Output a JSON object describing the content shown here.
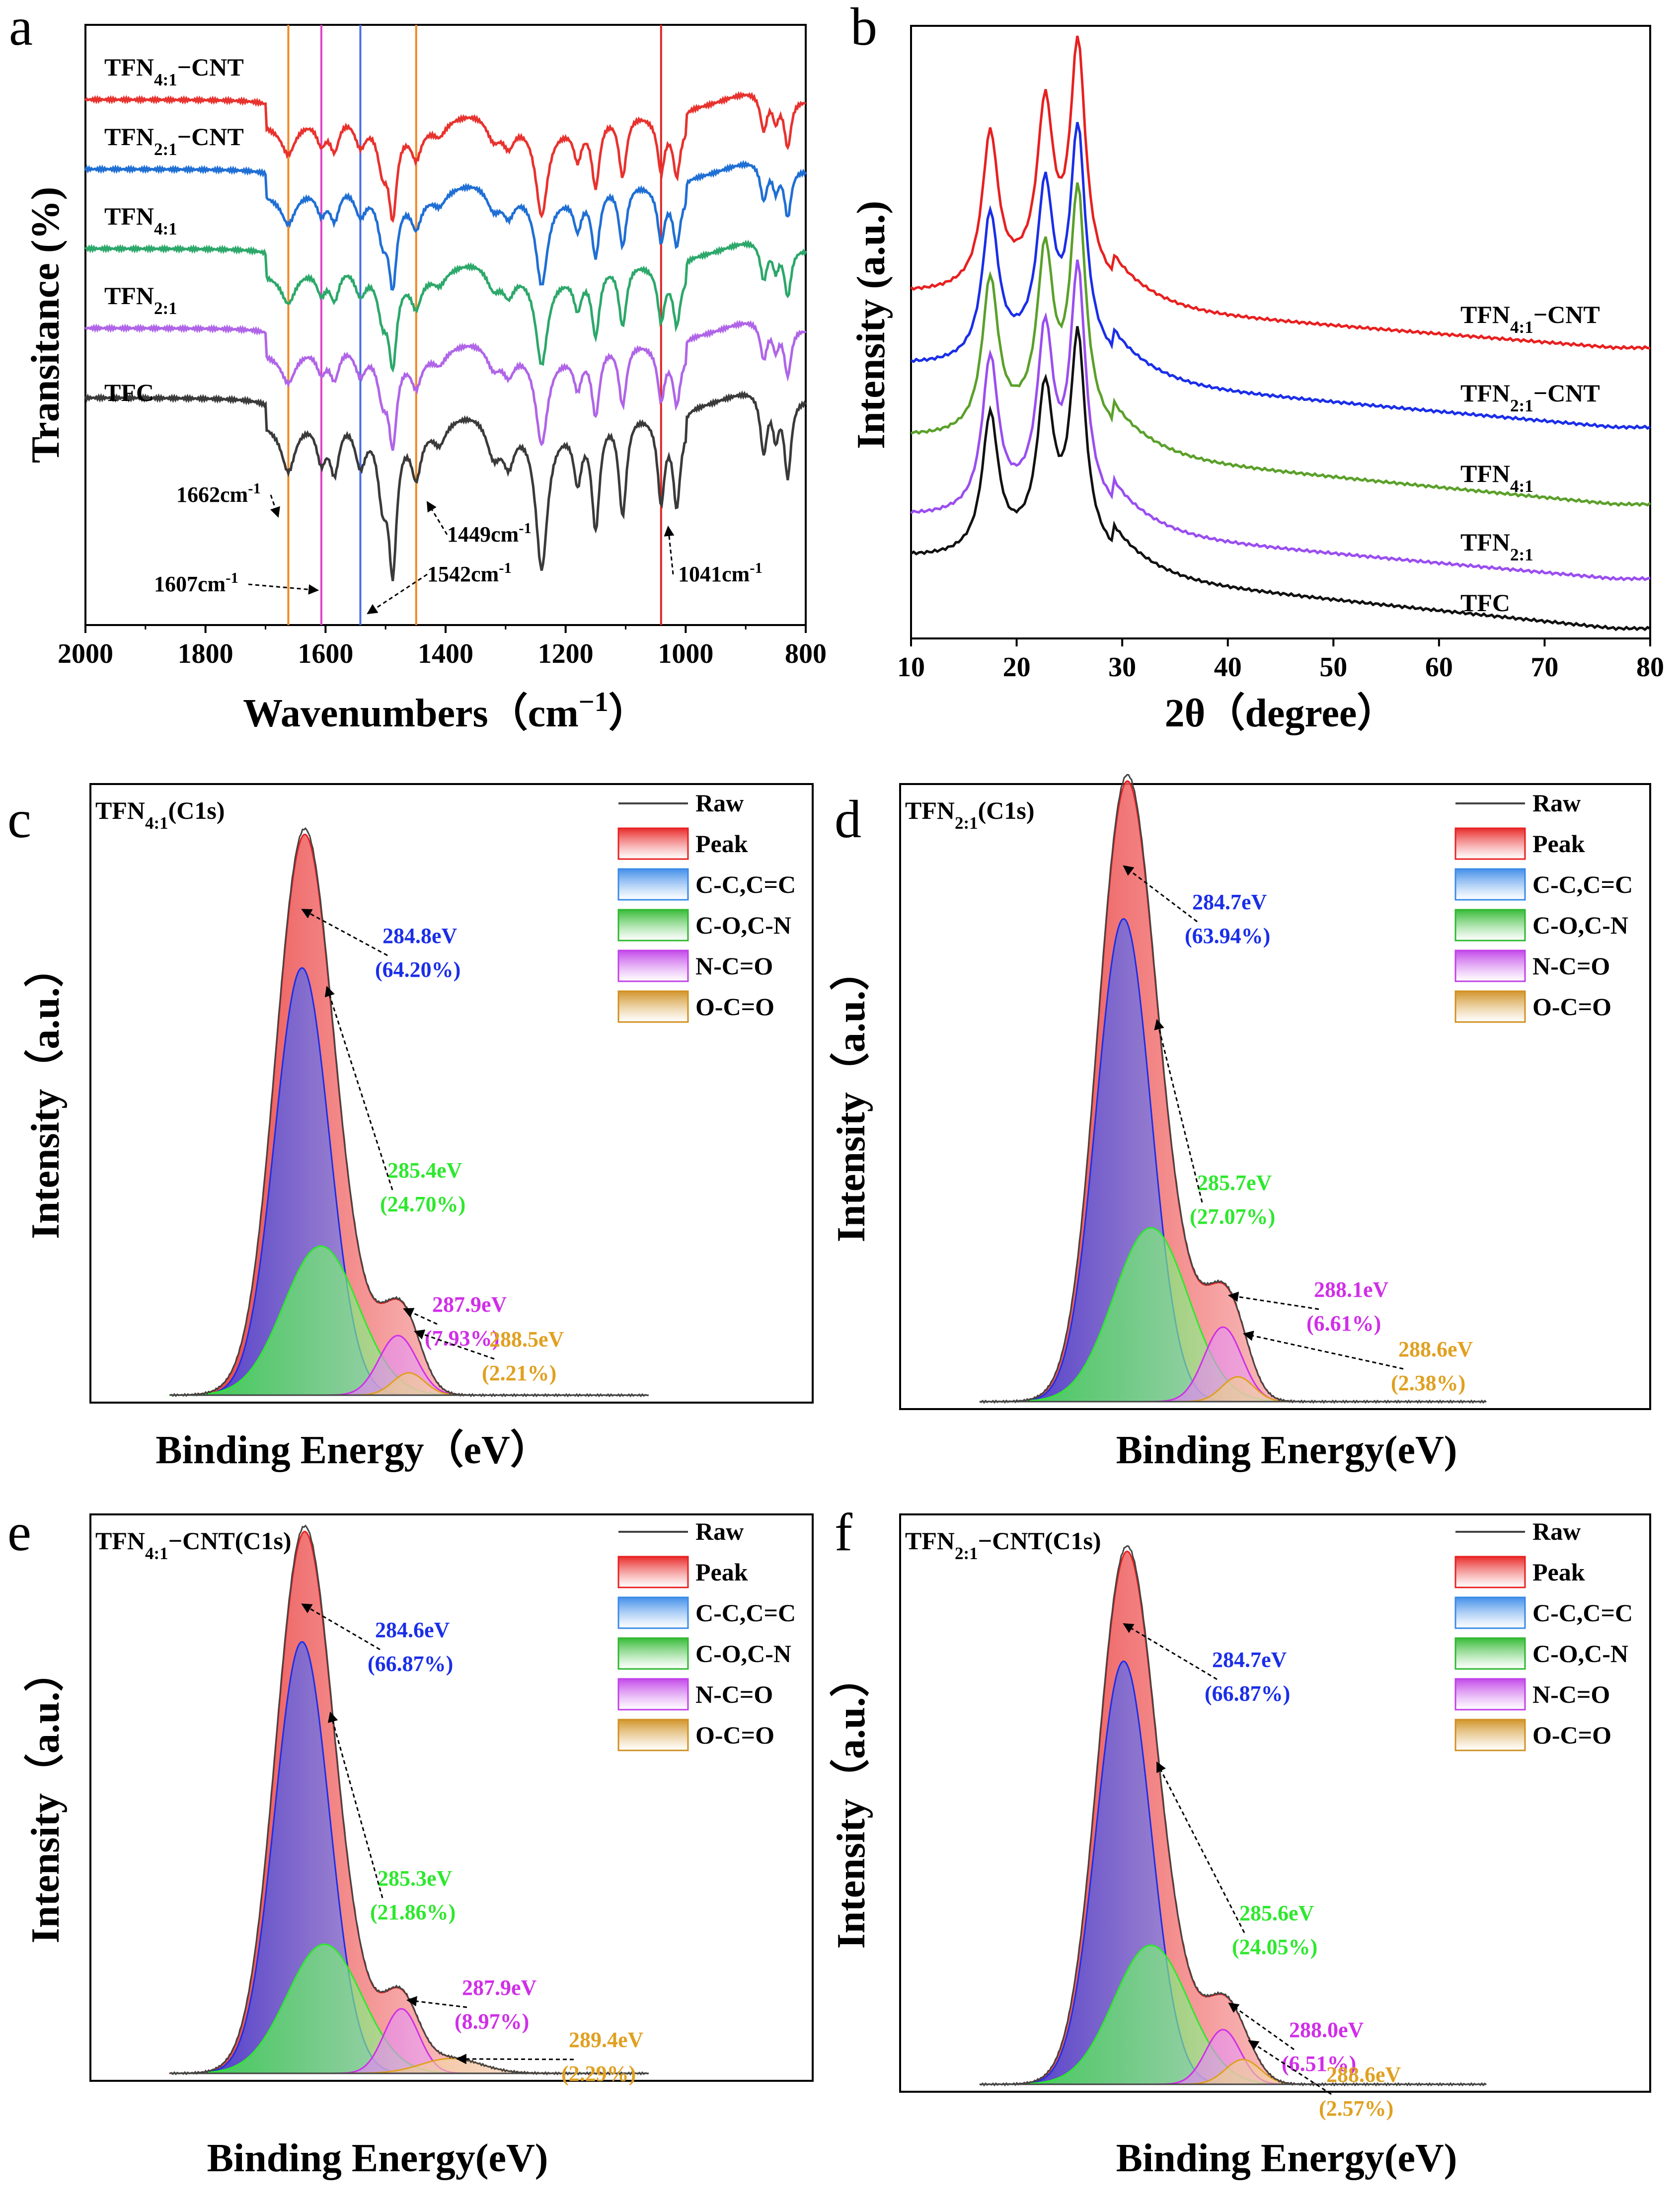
{
  "chart_data": [
    {
      "id": "a",
      "panel_label": "a",
      "type": "line",
      "title": "",
      "xlabel": "Wavenumbers（cm",
      "xlabel_sup": "−1",
      "xlabel_close": "）",
      "ylabel": "Transitance (%)",
      "x_reversed": true,
      "xlim": [
        2000,
        800
      ],
      "x_ticks": [
        "2000",
        "1800",
        "1600",
        "1400",
        "1200",
        "1000",
        "800"
      ],
      "series": [
        {
          "name": "TFN4:1−CNT",
          "base": "TFN",
          "sub": "4:1",
          "suffix": "−CNT",
          "color": "#e8322e",
          "offset": 0
        },
        {
          "name": "TFN2:1−CNT",
          "base": "TFN",
          "sub": "2:1",
          "suffix": "−CNT",
          "color": "#1f6fd4",
          "offset": 1
        },
        {
          "name": "TFN4:1",
          "base": "TFN",
          "sub": "4:1",
          "suffix": "",
          "color": "#2ca86a",
          "offset": 2
        },
        {
          "name": "TFN2:1",
          "base": "TFN",
          "sub": "2:1",
          "suffix": "",
          "color": "#b065e8",
          "offset": 3
        },
        {
          "name": "TFC",
          "base": "TFC",
          "sub": "",
          "suffix": "",
          "color": "#3a3a3a",
          "offset": 4
        }
      ],
      "marker_lines": [
        {
          "wavenumber": 1662,
          "color": "#f08a24",
          "label": "1662cm",
          "sup": "-1"
        },
        {
          "wavenumber": 1607,
          "color": "#e040c8",
          "label": "1607cm",
          "sup": "-1"
        },
        {
          "wavenumber": 1542,
          "color": "#4a6ee8",
          "label": "1542cm",
          "sup": "-1"
        },
        {
          "wavenumber": 1449,
          "color": "#f08a24",
          "label": "1449cm",
          "sup": "-1"
        },
        {
          "wavenumber": 1041,
          "color": "#e02424",
          "label": "1041cm",
          "sup": "-1"
        }
      ],
      "bands": [
        {
          "wavenumber": 1662,
          "depth": 0.35,
          "width": 14
        },
        {
          "wavenumber": 1607,
          "depth": 0.3,
          "width": 10
        },
        {
          "wavenumber": 1585,
          "depth": 0.4,
          "width": 10
        },
        {
          "wavenumber": 1542,
          "depth": 0.35,
          "width": 12
        },
        {
          "wavenumber": 1505,
          "depth": 0.5,
          "width": 10
        },
        {
          "wavenumber": 1488,
          "depth": 1.0,
          "width": 8
        },
        {
          "wavenumber": 1449,
          "depth": 0.35,
          "width": 10
        },
        {
          "wavenumber": 1410,
          "depth": 0.15,
          "width": 12
        },
        {
          "wavenumber": 1320,
          "depth": 0.3,
          "width": 15
        },
        {
          "wavenumber": 1295,
          "depth": 0.3,
          "width": 12
        },
        {
          "wavenumber": 1240,
          "depth": 1.05,
          "width": 12
        },
        {
          "wavenumber": 1180,
          "depth": 0.4,
          "width": 8
        },
        {
          "wavenumber": 1150,
          "depth": 0.8,
          "width": 8
        },
        {
          "wavenumber": 1105,
          "depth": 0.75,
          "width": 8
        },
        {
          "wavenumber": 1041,
          "depth": 0.6,
          "width": 7
        },
        {
          "wavenumber": 1015,
          "depth": 0.6,
          "width": 7
        },
        {
          "wavenumber": 870,
          "depth": 0.45,
          "width": 7
        },
        {
          "wavenumber": 850,
          "depth": 0.3,
          "width": 6
        },
        {
          "wavenumber": 830,
          "depth": 0.6,
          "width": 7
        }
      ]
    },
    {
      "id": "b",
      "panel_label": "b",
      "type": "line",
      "title": "",
      "xlabel": "2θ（degree）",
      "ylabel": "Intensity (a.u.)",
      "xlim": [
        10,
        80
      ],
      "x_ticks": [
        "10",
        "20",
        "30",
        "40",
        "50",
        "60",
        "70",
        "80"
      ],
      "peaks_2theta": [
        17.5,
        22.7,
        25.8
      ],
      "series": [
        {
          "name": "TFN4:1−CNT",
          "base": "TFN",
          "sub": "4:1",
          "suffix": "−CNT",
          "color": "#e82020",
          "offset": 0
        },
        {
          "name": "TFN2:1−CNT",
          "base": "TFN",
          "sub": "2:1",
          "suffix": "−CNT",
          "color": "#1a2ee8",
          "offset": 1
        },
        {
          "name": "TFN4:1",
          "base": "TFN",
          "sub": "4:1",
          "suffix": "",
          "color": "#5aa02a",
          "offset": 2
        },
        {
          "name": "TFN2:1",
          "base": "TFN",
          "sub": "2:1",
          "suffix": "",
          "color": "#9a4ef0",
          "offset": 3
        },
        {
          "name": "TFC",
          "base": "TFC",
          "sub": "",
          "suffix": "",
          "color": "#111111",
          "offset": 4
        }
      ]
    },
    {
      "id": "c",
      "panel_label": "c",
      "type": "area",
      "title": "TFN",
      "title_sub": "4:1",
      "title_suffix": "(C1s)",
      "xlabel": "Binding Energy（eV）",
      "ylabel": "Intensity（a.u.）",
      "components": [
        {
          "name": "C-C,C=C",
          "be": 284.8,
          "pct": 64.2,
          "label_be": "284.8eV",
          "label_pct": "(64.20%)",
          "color": "#1a2ee8"
        },
        {
          "name": "C-O,C-N",
          "be": 285.4,
          "pct": 24.7,
          "label_be": "285.4eV",
          "label_pct": "(24.70%)",
          "color": "#2ee82e"
        },
        {
          "name": "N-C=O",
          "be": 287.9,
          "pct": 7.93,
          "label_be": "287.9eV",
          "label_pct": "(7.93%)",
          "color": "#d02ee8"
        },
        {
          "name": "O-C=O",
          "be": 288.5,
          "pct": 2.21,
          "label_be": "288.5eV",
          "label_pct": "(2.21%)",
          "color": "#e0a020"
        }
      ]
    },
    {
      "id": "d",
      "panel_label": "d",
      "type": "area",
      "title": "TFN",
      "title_sub": "2:1",
      "title_suffix": "(C1s)",
      "xlabel": "Binding Energy(eV)",
      "ylabel": "Intensity（a.u.）",
      "components": [
        {
          "name": "C-C,C=C",
          "be": 284.7,
          "pct": 63.94,
          "label_be": "284.7eV",
          "label_pct": "(63.94%)",
          "color": "#1a2ee8"
        },
        {
          "name": "C-O,C-N",
          "be": 285.7,
          "pct": 27.07,
          "label_be": "285.7eV",
          "label_pct": "(27.07%)",
          "color": "#2ee82e"
        },
        {
          "name": "N-C=O",
          "be": 288.1,
          "pct": 6.61,
          "label_be": "288.1eV",
          "label_pct": "(6.61%)",
          "color": "#d02ee8"
        },
        {
          "name": "O-C=O",
          "be": 288.6,
          "pct": 2.38,
          "label_be": "288.6eV",
          "label_pct": "(2.38%)",
          "color": "#e0a020"
        }
      ]
    },
    {
      "id": "e",
      "panel_label": "e",
      "type": "area",
      "title": "TFN",
      "title_sub": "4:1",
      "title_suffix": "−CNT(C1s)",
      "xlabel": "Binding Energy(eV)",
      "ylabel": "Intensity（a.u.）",
      "components": [
        {
          "name": "C-C,C=C",
          "be": 284.6,
          "pct": 66.87,
          "label_be": "284.6eV",
          "label_pct": "(66.87%)",
          "color": "#1a2ee8"
        },
        {
          "name": "C-O,C-N",
          "be": 285.3,
          "pct": 21.86,
          "label_be": "285.3eV",
          "label_pct": "(21.86%)",
          "color": "#2ee82e"
        },
        {
          "name": "N-C=O",
          "be": 287.9,
          "pct": 8.97,
          "label_be": "287.9eV",
          "label_pct": "(8.97%)",
          "color": "#d02ee8"
        },
        {
          "name": "O-C=O",
          "be": 289.4,
          "pct": 2.29,
          "label_be": "289.4eV",
          "label_pct": "(2.29%)",
          "color": "#e0a020"
        }
      ]
    },
    {
      "id": "f",
      "panel_label": "f",
      "type": "area",
      "title": "TFN",
      "title_sub": "2:1",
      "title_suffix": "−CNT(C1s)",
      "xlabel": "Binding Energy(eV)",
      "ylabel": "Intensity（a.u.）",
      "components": [
        {
          "name": "C-C,C=C",
          "be": 284.7,
          "pct": 66.87,
          "label_be": "284.7eV",
          "label_pct": "(66.87%)",
          "color": "#1a2ee8"
        },
        {
          "name": "C-O,C-N",
          "be": 285.6,
          "pct": 24.05,
          "label_be": "285.6eV",
          "label_pct": "(24.05%)",
          "color": "#2ee82e"
        },
        {
          "name": "N-C=O",
          "be": 288.0,
          "pct": 6.51,
          "label_be": "288.0eV",
          "label_pct": "(6.51%)",
          "color": "#d02ee8"
        },
        {
          "name": "O-C=O",
          "be": 288.6,
          "pct": 2.57,
          "label_be": "288.6eV",
          "label_pct": "(2.57%)",
          "color": "#e0a020"
        }
      ]
    }
  ],
  "xps_legend": [
    {
      "name": "Raw",
      "kind": "line",
      "color": "#444444"
    },
    {
      "name": "Peak",
      "kind": "box",
      "color": "#e82020"
    },
    {
      "name": "C-C,C=C",
      "kind": "box",
      "color": "#3a8ae8"
    },
    {
      "name": "C-O,C-N",
      "kind": "box",
      "color": "#2eb82e"
    },
    {
      "name": "N-C=O",
      "kind": "box",
      "color": "#c040e8"
    },
    {
      "name": "O-C=O",
      "kind": "box",
      "color": "#d09020"
    }
  ]
}
